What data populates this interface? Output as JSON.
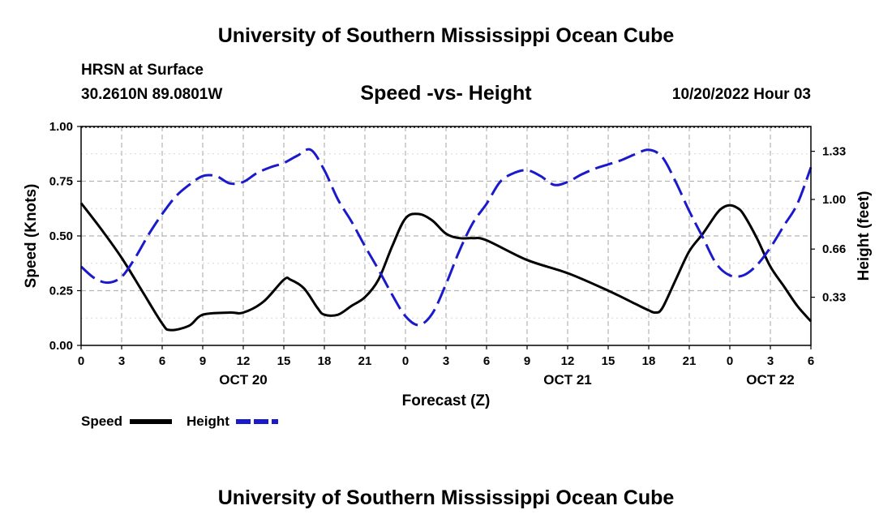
{
  "header": {
    "title": "University of Southern Mississippi Ocean Cube",
    "station": "HRSN at Surface",
    "coordinates": "30.2610N  89.0801W",
    "chart_title": "Speed -vs- Height",
    "datetime": "10/20/2022 Hour 03",
    "footer_title": "University of Southern Mississippi Ocean Cube"
  },
  "colors": {
    "speed": "#000000",
    "height": "#1a1acc",
    "grid": "#b4b4b4"
  },
  "chart_data": {
    "type": "line",
    "title": "Speed -vs- Height",
    "xlabel": "Forecast (Z)",
    "ylabel_left": "Speed (Knots)",
    "ylabel_right": "Height (feet)",
    "x_range_hours": [
      0,
      54
    ],
    "x_ticks": [
      {
        "h": 0,
        "label": "0"
      },
      {
        "h": 3,
        "label": "3"
      },
      {
        "h": 6,
        "label": "6"
      },
      {
        "h": 9,
        "label": "9"
      },
      {
        "h": 12,
        "label": "12"
      },
      {
        "h": 15,
        "label": "15"
      },
      {
        "h": 18,
        "label": "18"
      },
      {
        "h": 21,
        "label": "21"
      },
      {
        "h": 24,
        "label": "0"
      },
      {
        "h": 27,
        "label": "3"
      },
      {
        "h": 30,
        "label": "6"
      },
      {
        "h": 33,
        "label": "9"
      },
      {
        "h": 36,
        "label": "12"
      },
      {
        "h": 39,
        "label": "15"
      },
      {
        "h": 42,
        "label": "18"
      },
      {
        "h": 45,
        "label": "21"
      },
      {
        "h": 48,
        "label": "0"
      },
      {
        "h": 51,
        "label": "3"
      },
      {
        "h": 54,
        "label": "6"
      }
    ],
    "date_labels": [
      {
        "h": 12,
        "label": "OCT 20"
      },
      {
        "h": 36,
        "label": "OCT 21"
      },
      {
        "h": 51,
        "label": "OCT 22"
      }
    ],
    "y_left": {
      "range": [
        0,
        1
      ],
      "ticks": [
        "0.00",
        "0.25",
        "0.50",
        "0.75",
        "1.00"
      ]
    },
    "y_right": {
      "range": [
        0,
        1.5
      ],
      "ticks": [
        0.33,
        0.66,
        1.0,
        1.33
      ],
      "tick_labels": [
        "0.33",
        "0.66",
        "1.00",
        "1.33"
      ]
    },
    "grid": true,
    "legend": {
      "position": "bottom-left",
      "items": [
        {
          "name": "Speed",
          "style": "solid"
        },
        {
          "name": "Height",
          "style": "dashed"
        }
      ]
    },
    "series": [
      {
        "name": "Speed",
        "axis": "left",
        "style": "solid",
        "x": [
          0,
          1.5,
          3,
          4.5,
          6,
          6.6,
          8,
          9,
          11,
          12,
          13.5,
          15,
          15.5,
          16.5,
          17.5,
          18,
          19,
          20,
          21,
          22,
          23,
          24,
          25,
          26,
          27,
          28,
          29,
          30,
          33,
          36,
          39,
          41,
          42,
          42.5,
          43,
          44,
          45,
          46,
          47,
          47.5,
          48,
          48.5,
          49,
          50,
          51,
          52,
          53,
          54
        ],
        "values": [
          0.65,
          0.53,
          0.4,
          0.25,
          0.1,
          0.07,
          0.09,
          0.14,
          0.15,
          0.15,
          0.2,
          0.3,
          0.3,
          0.26,
          0.17,
          0.14,
          0.14,
          0.18,
          0.22,
          0.3,
          0.45,
          0.58,
          0.6,
          0.57,
          0.51,
          0.49,
          0.49,
          0.48,
          0.39,
          0.33,
          0.25,
          0.19,
          0.16,
          0.15,
          0.17,
          0.3,
          0.43,
          0.51,
          0.6,
          0.63,
          0.64,
          0.63,
          0.6,
          0.49,
          0.36,
          0.27,
          0.18,
          0.11
        ]
      },
      {
        "name": "Height",
        "axis": "right",
        "style": "dashed",
        "x": [
          0,
          1,
          2,
          3,
          4,
          5,
          6,
          7,
          8,
          9,
          10,
          11,
          12,
          13,
          14,
          15,
          16,
          17,
          18,
          19,
          20,
          21,
          22,
          23,
          24,
          25,
          26,
          27,
          28,
          29,
          30,
          31,
          32,
          33,
          34,
          35,
          36,
          37,
          38,
          39,
          40,
          41,
          42,
          43,
          44,
          45,
          46,
          47,
          48,
          49,
          50,
          51,
          52,
          53,
          54
        ],
        "values": [
          0.54,
          0.46,
          0.43,
          0.47,
          0.6,
          0.76,
          0.9,
          1.02,
          1.1,
          1.16,
          1.16,
          1.11,
          1.12,
          1.18,
          1.22,
          1.25,
          1.3,
          1.34,
          1.2,
          1.0,
          0.85,
          0.68,
          0.52,
          0.35,
          0.2,
          0.14,
          0.22,
          0.42,
          0.65,
          0.84,
          0.97,
          1.12,
          1.18,
          1.2,
          1.16,
          1.1,
          1.12,
          1.17,
          1.21,
          1.24,
          1.27,
          1.31,
          1.34,
          1.29,
          1.12,
          0.92,
          0.74,
          0.56,
          0.48,
          0.48,
          0.55,
          0.67,
          0.82,
          0.97,
          1.22
        ]
      }
    ]
  }
}
